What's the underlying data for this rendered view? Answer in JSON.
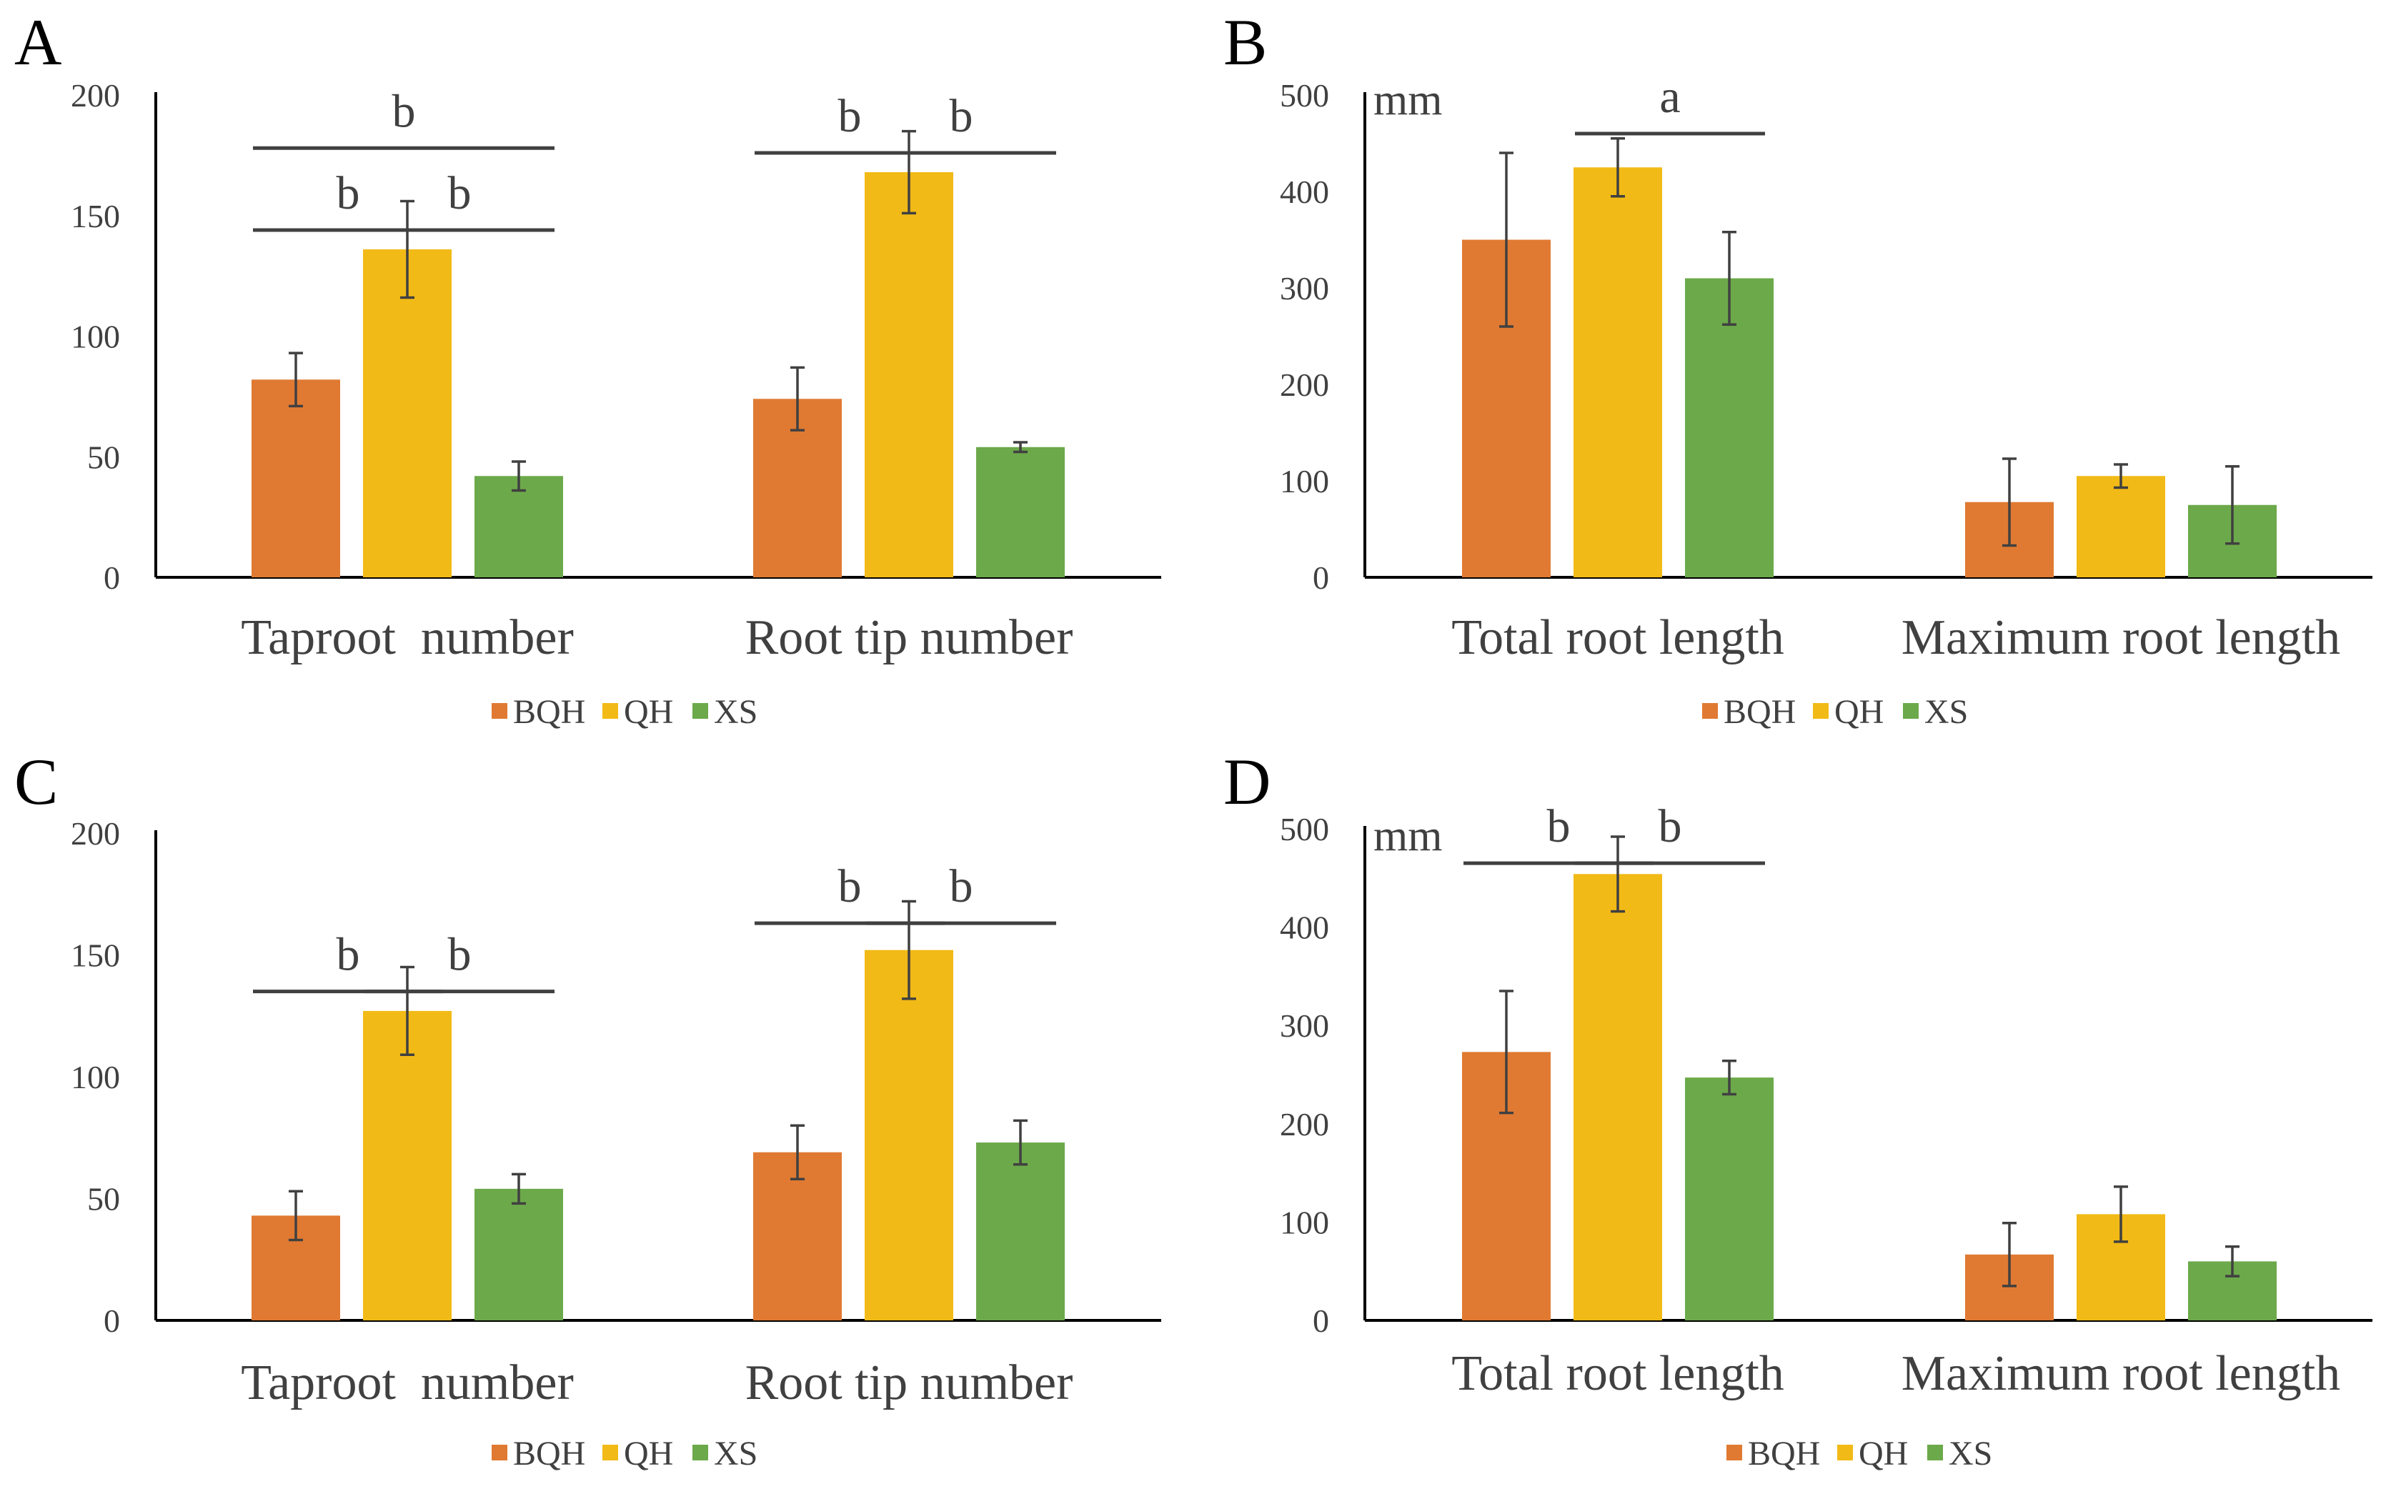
{
  "colors": {
    "BQH": "#E07A32",
    "QH": "#F2BA16",
    "XS": "#6CA94A"
  },
  "chart_data": [
    {
      "panel": "A",
      "type": "bar",
      "unit_label": "",
      "categories": [
        "Taproot  number",
        "Root tip number"
      ],
      "series": [
        {
          "name": "BQH",
          "values": [
            82,
            74
          ],
          "errors": [
            11,
            13
          ]
        },
        {
          "name": "QH",
          "values": [
            136,
            168
          ],
          "errors": [
            20,
            17
          ]
        },
        {
          "name": "XS",
          "values": [
            42,
            54
          ],
          "errors": [
            6,
            2
          ]
        }
      ],
      "ylim": [
        0,
        200
      ],
      "yticks": [
        0,
        50,
        100,
        150,
        200
      ],
      "annotations": [
        {
          "label": "b",
          "category": 0,
          "from": 0,
          "to": 2,
          "y": 178
        },
        {
          "label": "b",
          "category": 0,
          "from": 0,
          "to": 1,
          "y": 144
        },
        {
          "label": "b",
          "category": 0,
          "from": 1,
          "to": 2,
          "y": 144
        },
        {
          "label": "b",
          "category": 1,
          "from": 0,
          "to": 1,
          "y": 176
        },
        {
          "label": "b",
          "category": 1,
          "from": 1,
          "to": 2,
          "y": 176
        }
      ],
      "legend": [
        "BQH",
        "QH",
        "XS"
      ]
    },
    {
      "panel": "B",
      "type": "bar",
      "unit_label": "mm",
      "categories": [
        "Total root length",
        "Maximum root length"
      ],
      "series": [
        {
          "name": "BQH",
          "values": [
            350,
            78
          ],
          "errors": [
            90,
            45
          ]
        },
        {
          "name": "QH",
          "values": [
            425,
            105
          ],
          "errors": [
            30,
            12
          ]
        },
        {
          "name": "XS",
          "values": [
            310,
            75
          ],
          "errors": [
            48,
            40
          ]
        }
      ],
      "ylim": [
        0,
        500
      ],
      "yticks": [
        0,
        100,
        200,
        300,
        400,
        500
      ],
      "annotations": [
        {
          "label": "a",
          "category": 0,
          "from": 1,
          "to": 2,
          "y": 460
        }
      ],
      "legend": [
        "BQH",
        "QH",
        "XS"
      ]
    },
    {
      "panel": "C",
      "type": "bar",
      "unit_label": "",
      "categories": [
        "Taproot  number",
        "Root tip number"
      ],
      "series": [
        {
          "name": "BQH",
          "values": [
            43,
            69
          ],
          "errors": [
            10,
            11
          ]
        },
        {
          "name": "QH",
          "values": [
            127,
            152
          ],
          "errors": [
            18,
            20
          ]
        },
        {
          "name": "XS",
          "values": [
            54,
            73
          ],
          "errors": [
            6,
            9
          ]
        }
      ],
      "ylim": [
        0,
        200
      ],
      "yticks": [
        0,
        50,
        100,
        150,
        200
      ],
      "annotations": [
        {
          "label": "b",
          "category": 0,
          "from": 0,
          "to": 1,
          "y": 135
        },
        {
          "label": "b",
          "category": 0,
          "from": 1,
          "to": 2,
          "y": 135
        },
        {
          "label": "b",
          "category": 1,
          "from": 0,
          "to": 1,
          "y": 163
        },
        {
          "label": "b",
          "category": 1,
          "from": 1,
          "to": 2,
          "y": 163
        }
      ],
      "legend": [
        "BQH",
        "QH",
        "XS"
      ]
    },
    {
      "panel": "D",
      "type": "bar",
      "unit_label": "mm",
      "categories": [
        "Total root length",
        "Maximum root length"
      ],
      "series": [
        {
          "name": "BQH",
          "values": [
            273,
            67
          ],
          "errors": [
            62,
            32
          ]
        },
        {
          "name": "QH",
          "values": [
            454,
            108
          ],
          "errors": [
            38,
            28
          ]
        },
        {
          "name": "XS",
          "values": [
            247,
            60
          ],
          "errors": [
            17,
            15
          ]
        }
      ],
      "ylim": [
        0,
        500
      ],
      "yticks": [
        0,
        100,
        200,
        300,
        400,
        500
      ],
      "annotations": [
        {
          "label": "b",
          "category": 0,
          "from": 0,
          "to": 1,
          "y": 465
        },
        {
          "label": "b",
          "category": 0,
          "from": 1,
          "to": 2,
          "y": 465
        }
      ],
      "legend": [
        "BQH",
        "QH",
        "XS"
      ]
    }
  ]
}
